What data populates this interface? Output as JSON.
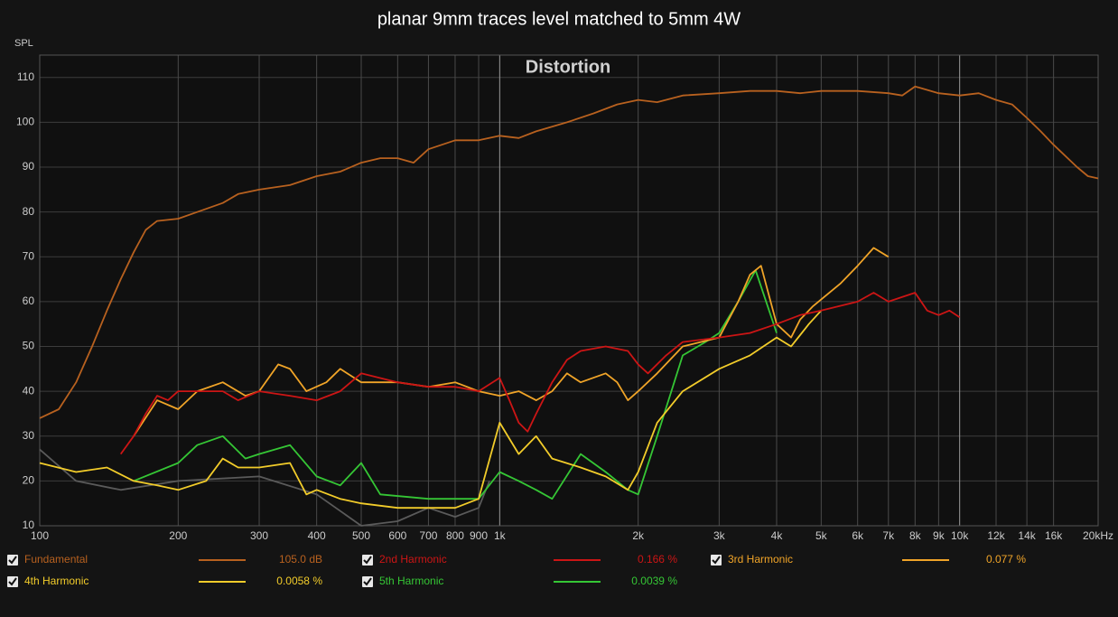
{
  "chart_data": {
    "type": "line",
    "title": "planar 9mm traces level matched to 5mm 4W",
    "annotation": "Distortion",
    "y_label": "SPL",
    "log_x": true,
    "grid": true,
    "xlim": [
      100,
      20000
    ],
    "ylim": [
      10,
      115
    ],
    "yticks": [
      10,
      20,
      30,
      40,
      50,
      60,
      70,
      80,
      90,
      100,
      110
    ],
    "xticks": [
      100,
      200,
      300,
      400,
      500,
      600,
      700,
      800,
      900,
      {
        "value": 1000,
        "label": "1k"
      },
      {
        "value": 2000,
        "label": "2k"
      },
      {
        "value": 3000,
        "label": "3k"
      },
      {
        "value": 4000,
        "label": "4k"
      },
      {
        "value": 5000,
        "label": "5k"
      },
      {
        "value": 6000,
        "label": "6k"
      },
      {
        "value": 7000,
        "label": "7k"
      },
      {
        "value": 8000,
        "label": "8k"
      },
      {
        "value": 9000,
        "label": "9k"
      },
      {
        "value": 10000,
        "label": "10k"
      },
      {
        "value": 12000,
        "label": "12k"
      },
      {
        "value": 14000,
        "label": "14k"
      },
      {
        "value": 16000,
        "label": "16k"
      },
      {
        "value": 20000,
        "label": "20kHz"
      }
    ],
    "series": [
      {
        "name": "Fundamental",
        "color": "#b8611f",
        "legend_value": "105.0 dB",
        "x": [
          100,
          110,
          120,
          130,
          140,
          150,
          160,
          170,
          180,
          200,
          220,
          250,
          270,
          300,
          350,
          400,
          450,
          500,
          550,
          600,
          650,
          700,
          800,
          900,
          1000,
          1100,
          1200,
          1400,
          1600,
          1800,
          2000,
          2200,
          2500,
          3000,
          3500,
          4000,
          4500,
          5000,
          6000,
          7000,
          7500,
          8000,
          9000,
          10000,
          11000,
          12000,
          13000,
          14000,
          15000,
          16000,
          18000,
          19000,
          20000
        ],
        "values": [
          34,
          36,
          42,
          50,
          58,
          65,
          71,
          76,
          78,
          78.5,
          80,
          82,
          84,
          85,
          86,
          88,
          89,
          91,
          92,
          92,
          91,
          94,
          96,
          96,
          97,
          96.5,
          98,
          100,
          102,
          104,
          105,
          104.5,
          106,
          106.5,
          107,
          107,
          106.5,
          107,
          107,
          106.5,
          106,
          108,
          106.5,
          106,
          106.5,
          105,
          104,
          101,
          98,
          95,
          90,
          88,
          87.5
        ]
      },
      {
        "name": "2nd Harmonic",
        "color": "#cc1515",
        "legend_value": "0.166 %",
        "x": [
          150,
          160,
          170,
          180,
          190,
          200,
          250,
          270,
          300,
          350,
          400,
          450,
          500,
          600,
          700,
          800,
          900,
          1000,
          1050,
          1100,
          1150,
          1200,
          1300,
          1400,
          1500,
          1700,
          1900,
          2000,
          2100,
          2300,
          2500,
          3000,
          3500,
          4000,
          4500,
          5000,
          6000,
          6500,
          7000,
          8000,
          8500,
          9000,
          9500,
          10000
        ],
        "values": [
          26,
          30,
          35,
          39,
          38,
          40,
          40,
          38,
          40,
          39,
          38,
          40,
          44,
          42,
          41,
          41,
          40,
          43,
          38,
          33,
          31,
          35,
          42,
          47,
          49,
          50,
          49,
          46,
          44,
          48,
          51,
          52,
          53,
          55,
          57,
          58,
          60,
          62,
          60,
          62,
          58,
          57,
          58,
          56.5
        ]
      },
      {
        "name": "3rd Harmonic",
        "color": "#f0a428",
        "legend_value": "0.077 %",
        "x": [
          160,
          180,
          200,
          220,
          250,
          280,
          300,
          330,
          350,
          380,
          420,
          450,
          500,
          600,
          700,
          800,
          900,
          1000,
          1100,
          1200,
          1300,
          1400,
          1500,
          1700,
          1800,
          1900,
          2000,
          2200,
          2500,
          3000,
          3300,
          3500,
          3700,
          4000,
          4300,
          4500,
          4800,
          5500,
          6000,
          6500,
          7000
        ],
        "values": [
          30,
          38,
          36,
          40,
          42,
          39,
          40,
          46,
          45,
          40,
          42,
          45,
          42,
          42,
          41,
          42,
          40,
          39,
          40,
          38,
          40,
          44,
          42,
          44,
          42,
          38,
          40,
          44,
          50,
          52,
          60,
          66,
          68,
          55,
          52,
          56,
          59,
          64,
          68,
          72,
          70
        ]
      },
      {
        "name": "4th Harmonic",
        "color": "#f2cc2a",
        "legend_value": "0.0058 %",
        "x": [
          100,
          120,
          140,
          160,
          180,
          200,
          230,
          250,
          270,
          300,
          350,
          380,
          400,
          450,
          500,
          600,
          800,
          900,
          1000,
          1100,
          1200,
          1300,
          1500,
          1700,
          1900,
          2000,
          2200,
          2500,
          3000,
          3500,
          4000,
          4300,
          4700,
          5000
        ],
        "values": [
          24,
          22,
          23,
          20,
          19,
          18,
          20,
          25,
          23,
          23,
          24,
          17,
          18,
          16,
          15,
          14,
          14,
          16,
          33,
          26,
          30,
          25,
          23,
          21,
          18,
          22,
          33,
          40,
          45,
          48,
          52,
          50,
          55,
          58
        ]
      },
      {
        "name": "5th Harmonic",
        "color": "#35c635",
        "legend_value": "0.0039 %",
        "x": [
          160,
          200,
          220,
          250,
          280,
          300,
          350,
          400,
          450,
          500,
          550,
          700,
          900,
          1000,
          1100,
          1200,
          1300,
          1500,
          1700,
          1900,
          2000,
          2200,
          2500,
          2800,
          3000,
          3300,
          3600,
          4000
        ],
        "values": [
          20,
          24,
          28,
          30,
          25,
          26,
          28,
          21,
          19,
          24,
          17,
          16,
          16,
          22,
          20,
          18,
          16,
          26,
          22,
          18,
          17,
          30,
          48,
          51,
          53,
          60,
          67,
          53
        ]
      },
      {
        "color": "#5a5a5a",
        "x": [
          100,
          120,
          150,
          200,
          300,
          400,
          500,
          600,
          700,
          800,
          900,
          950
        ],
        "values": [
          27,
          20,
          18,
          20,
          21,
          17,
          10,
          11,
          14,
          12,
          14,
          20
        ]
      }
    ]
  }
}
